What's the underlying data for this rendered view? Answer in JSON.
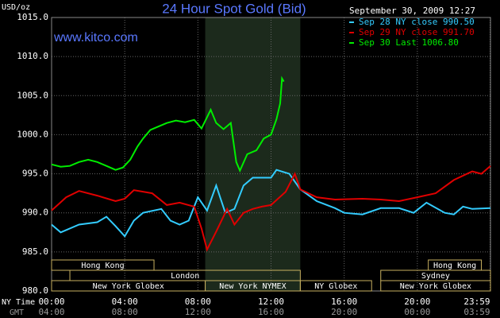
{
  "chart_data": {
    "type": "line",
    "title": "24 Hour Spot Gold (Bid)",
    "site": "www.kitco.com",
    "y_label": "USD/oz",
    "timestamp": "September 30, 2009 12:27",
    "x_label": "NY Time",
    "x2_label": "GMT",
    "xlim": [
      0,
      24
    ],
    "xticks": [
      {
        "value": 0,
        "label": "00:00"
      },
      {
        "value": 4,
        "label": "04:00"
      },
      {
        "value": 8,
        "label": "08:00"
      },
      {
        "value": 12,
        "label": "12:00"
      },
      {
        "value": 16,
        "label": "16:00"
      },
      {
        "value": 20,
        "label": "20:00"
      },
      {
        "value": 23.98,
        "label": "23:59"
      }
    ],
    "x2ticks": [
      {
        "value": 0,
        "label": "04:00"
      },
      {
        "value": 4,
        "label": "08:00"
      },
      {
        "value": 8,
        "label": "12:00"
      },
      {
        "value": 12,
        "label": "16:00"
      },
      {
        "value": 16,
        "label": "20:00"
      },
      {
        "value": 20,
        "label": "00:00"
      },
      {
        "value": 23.98,
        "label": "03:59"
      }
    ],
    "ylim": [
      980,
      1015
    ],
    "yticks": [
      {
        "value": 980,
        "label": "980.0"
      },
      {
        "value": 985,
        "label": "985.0"
      },
      {
        "value": 990,
        "label": "990.0"
      },
      {
        "value": 995,
        "label": "995.0"
      },
      {
        "value": 1000,
        "label": "1000.0"
      },
      {
        "value": 1005,
        "label": "1005.0"
      },
      {
        "value": 1010,
        "label": "1010.0"
      },
      {
        "value": 1015,
        "label": "1015.0"
      }
    ],
    "grid": true,
    "highlight": [
      8.4,
      13.6
    ],
    "sessions": [
      [
        {
          "label": "Hong Kong",
          "start": 0,
          "end": 5.6
        },
        {
          "label": "Hong Kong",
          "start": 20.6,
          "end": 23.5
        }
      ],
      [
        {
          "label": "London",
          "start": 1,
          "end": 13.6
        },
        {
          "label": "Sydney",
          "start": 18,
          "end": 24
        }
      ],
      [
        {
          "label": "New York Globex",
          "start": 0,
          "end": 8.4
        },
        {
          "label": "New York NYMEX",
          "start": 8.4,
          "end": 13.6
        },
        {
          "label": "NY Globex",
          "start": 13.6,
          "end": 17.5
        },
        {
          "label": "New York Globex",
          "start": 18,
          "end": 24
        }
      ]
    ],
    "series": [
      {
        "name": "Sep 28 NY close 990.50",
        "color": "#33ccff",
        "x": [
          0,
          0.5,
          1.5,
          2.5,
          3,
          3.5,
          4,
          4.5,
          5,
          6,
          6.5,
          7,
          7.5,
          8,
          8.5,
          9,
          9.5,
          10,
          10.5,
          11,
          12,
          12.3,
          13,
          13.6,
          14.5,
          15.5,
          16,
          17,
          18,
          19,
          19.8,
          20.5,
          21.5,
          22,
          22.5,
          23,
          24
        ],
        "values": [
          988.5,
          987.5,
          988.5,
          988.8,
          989.5,
          988.3,
          987,
          989,
          990,
          990.5,
          989,
          988.5,
          989,
          992,
          990.3,
          993.5,
          990,
          990.5,
          993.5,
          994.5,
          994.5,
          995.5,
          995,
          993,
          991.5,
          990.6,
          990,
          989.8,
          990.6,
          990.6,
          990,
          991.3,
          990,
          989.8,
          990.8,
          990.5,
          990.6
        ]
      },
      {
        "name": "Sep 29 NY close 991.70",
        "color": "#e00000",
        "x": [
          0,
          0.8,
          1.5,
          2.5,
          3.5,
          4,
          4.5,
          5.5,
          6.3,
          7,
          7.8,
          8.2,
          8.5,
          9,
          9.6,
          10,
          10.5,
          11,
          11.5,
          12,
          12.8,
          13.3,
          13.6,
          14.5,
          15.5,
          17,
          18,
          19,
          20,
          21,
          22,
          23,
          23.5,
          24
        ],
        "values": [
          990.3,
          992,
          992.8,
          992.2,
          991.5,
          991.8,
          992.9,
          992.5,
          991,
          991.3,
          990.8,
          988,
          985.3,
          987.6,
          990.5,
          988.5,
          990,
          990.5,
          990.8,
          991,
          992.7,
          995,
          993,
          992,
          991.7,
          991.8,
          991.7,
          991.5,
          992,
          992.5,
          994.2,
          995.3,
          995,
          996
        ]
      },
      {
        "name": "Sep 30 Last 1006.80",
        "color": "#00ee00",
        "x": [
          0,
          0.5,
          1,
          1.5,
          2,
          2.5,
          3,
          3.5,
          3.9,
          4.3,
          4.7,
          5,
          5.4,
          5.8,
          6.3,
          6.8,
          7.3,
          7.8,
          8.2,
          8.7,
          9,
          9.4,
          9.8,
          10.1,
          10.3,
          10.7,
          11.2,
          11.6,
          12,
          12.3,
          12.5,
          12.6,
          12.7
        ],
        "values": [
          996.2,
          995.9,
          996,
          996.5,
          996.8,
          996.5,
          996,
          995.5,
          995.8,
          996.8,
          998.5,
          999.5,
          1000.6,
          1001,
          1001.5,
          1001.8,
          1001.6,
          1001.9,
          1000.8,
          1003.2,
          1001.5,
          1000.7,
          1001.5,
          996.5,
          995.4,
          997.5,
          998,
          999.5,
          1000,
          1002,
          1004,
          1007.2,
          1006.8
        ]
      }
    ]
  }
}
